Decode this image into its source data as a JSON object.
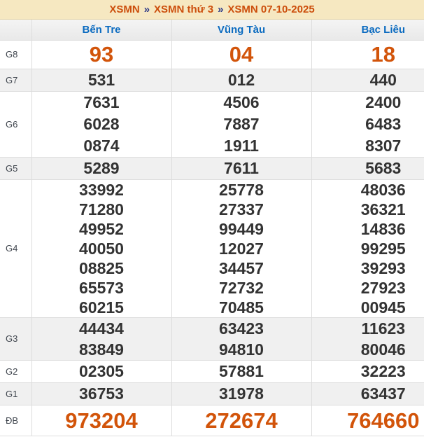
{
  "breadcrumb": {
    "separator": "»",
    "parts": [
      "XSMN",
      "XSMN thứ 3",
      "XSMN 07-10-2025"
    ]
  },
  "table": {
    "columns": [
      "Bến Tre",
      "Vũng Tàu",
      "Bạc Liêu"
    ],
    "rows": [
      {
        "label": "G8",
        "cells": [
          [
            "93"
          ],
          [
            "04"
          ],
          [
            "18"
          ]
        ]
      },
      {
        "label": "G7",
        "cells": [
          [
            "531"
          ],
          [
            "012"
          ],
          [
            "440"
          ]
        ]
      },
      {
        "label": "G6",
        "cells": [
          [
            "7631",
            "6028",
            "0874"
          ],
          [
            "4506",
            "7887",
            "1911"
          ],
          [
            "2400",
            "6483",
            "8307"
          ]
        ]
      },
      {
        "label": "G5",
        "cells": [
          [
            "5289"
          ],
          [
            "7611"
          ],
          [
            "5683"
          ]
        ]
      },
      {
        "label": "G4",
        "cells": [
          [
            "33992",
            "71280",
            "49952",
            "40050",
            "08825",
            "65573",
            "60215"
          ],
          [
            "25778",
            "27337",
            "99449",
            "12027",
            "34457",
            "72732",
            "70485"
          ],
          [
            "48036",
            "36321",
            "14836",
            "99295",
            "39293",
            "27923",
            "00945"
          ]
        ]
      },
      {
        "label": "G3",
        "cells": [
          [
            "44434",
            "83849"
          ],
          [
            "63423",
            "94810"
          ],
          [
            "11623",
            "80046"
          ]
        ]
      },
      {
        "label": "G2",
        "cells": [
          [
            "02305"
          ],
          [
            "57881"
          ],
          [
            "32223"
          ]
        ]
      },
      {
        "label": "G1",
        "cells": [
          [
            "36753"
          ],
          [
            "31978"
          ],
          [
            "63437"
          ]
        ]
      },
      {
        "label": "ĐB",
        "cells": [
          [
            "973204"
          ],
          [
            "272674"
          ],
          [
            "764660"
          ]
        ]
      }
    ]
  },
  "colors": {
    "accent_orange": "#d2540a",
    "link_orange": "#cc4e0c",
    "separator_navy": "#2c3a87",
    "header_blue": "#0b6bc0",
    "number_dark": "#333333",
    "breadcrumb_bg": "#f6e8c1",
    "row_alt_bg": "#f0f0f0"
  }
}
